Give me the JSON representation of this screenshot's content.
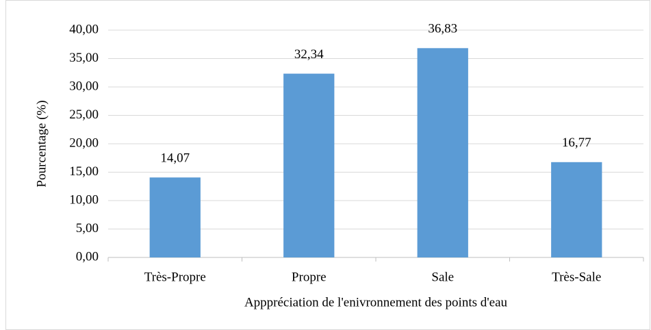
{
  "chart_data": {
    "type": "bar",
    "x_label": "Apppréciation de l'enivronnement des points d'eau",
    "y_label": "Pourcentage (%)",
    "categories": [
      "Très-Propre",
      "Propre",
      "Sale",
      "Très-Sale"
    ],
    "values": [
      14.07,
      32.34,
      36.83,
      16.77
    ],
    "value_labels": [
      "14,07",
      "32,34",
      "36,83",
      "16,77"
    ],
    "color": "#5b9bd5",
    "ylim": [
      0,
      40
    ],
    "yticks": [
      {
        "value": 0,
        "label": "0,00"
      },
      {
        "value": 5,
        "label": "5,00"
      },
      {
        "value": 10,
        "label": "10,00"
      },
      {
        "value": 15,
        "label": "15,00"
      },
      {
        "value": 20,
        "label": "20,00"
      },
      {
        "value": 25,
        "label": "25,00"
      },
      {
        "value": 30,
        "label": "30,00"
      },
      {
        "value": 35,
        "label": "35,00"
      },
      {
        "value": 40,
        "label": "40,00"
      }
    ],
    "grid": true
  }
}
